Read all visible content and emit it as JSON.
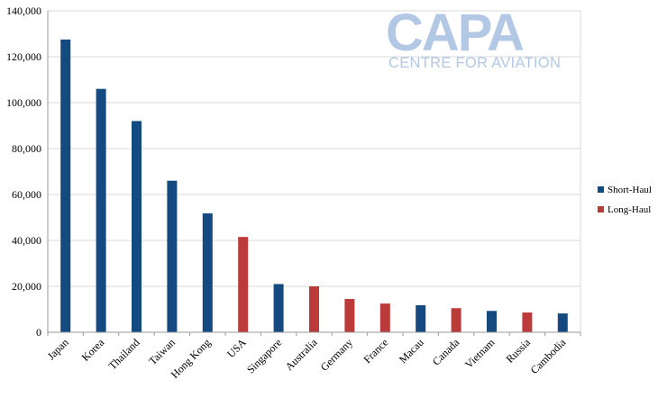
{
  "logo": {
    "main": "CAPA",
    "sub": "CENTRE FOR AVIATION"
  },
  "colors": {
    "short_haul": "#144a7f",
    "long_haul": "#bb3a3a",
    "grid": "#d9d9d9",
    "axis": "#9a9a9a"
  },
  "chart_data": {
    "type": "bar",
    "title": "",
    "xlabel": "",
    "ylabel": "",
    "ylim": [
      0,
      140000
    ],
    "yticks": [
      0,
      20000,
      40000,
      60000,
      80000,
      100000,
      120000,
      140000
    ],
    "ytick_labels": [
      "0",
      "20,000",
      "40,000",
      "60,000",
      "80,000",
      "100,000",
      "120,000",
      "140,000"
    ],
    "grid": true,
    "legend_position": "right",
    "categories": [
      "Japan",
      "Korea",
      "Thailand",
      "Taiwan",
      "Hong Kong",
      "USA",
      "Singapore",
      "Australia",
      "Germany",
      "France",
      "Macau",
      "Canada",
      "Vietnam",
      "Russia",
      "Cambodia"
    ],
    "series": [
      {
        "name": "Short-Haul",
        "values": [
          127500,
          106000,
          92000,
          66000,
          51800,
          null,
          21000,
          null,
          null,
          null,
          11800,
          null,
          9300,
          null,
          8200
        ]
      },
      {
        "name": "Long-Haul",
        "values": [
          null,
          null,
          null,
          null,
          null,
          41500,
          null,
          20000,
          14500,
          12500,
          null,
          10500,
          null,
          8600,
          null
        ]
      }
    ]
  }
}
